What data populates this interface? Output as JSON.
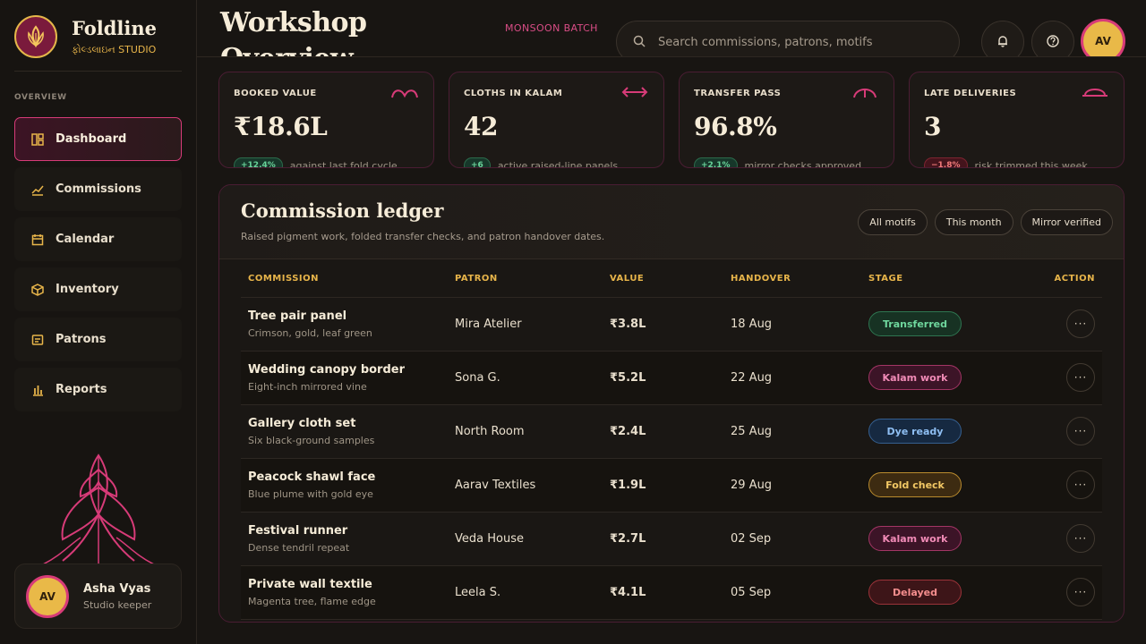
{
  "brand": {
    "name": "Foldline",
    "subtitle": "ફોલ્ડલાઇન STUDIO"
  },
  "nav": {
    "section_label": "OVERVIEW",
    "items": [
      {
        "label": "Dashboard",
        "icon": "dashboard-icon",
        "active": true
      },
      {
        "label": "Commissions",
        "icon": "trend-icon"
      },
      {
        "label": "Calendar",
        "icon": "calendar-icon"
      },
      {
        "label": "Inventory",
        "icon": "box-icon"
      },
      {
        "label": "Patrons",
        "icon": "card-icon"
      },
      {
        "label": "Reports",
        "icon": "bar-chart-icon"
      }
    ]
  },
  "profile": {
    "initials": "AV",
    "name": "Asha Vyas",
    "role": "Studio keeper"
  },
  "header": {
    "title": "Workshop Overview",
    "batch": "MONSOON BATCH",
    "search_placeholder": "Search commissions, patrons, motifs",
    "avatar_initials": "AV"
  },
  "kpis": [
    {
      "label": "BOOKED VALUE",
      "value": "₹18.6L",
      "delta": "+12.4%",
      "direction": "up",
      "note": "against last fold cycle"
    },
    {
      "label": "CLOTHS IN KALAM",
      "value": "42",
      "delta": "+6",
      "direction": "up",
      "note": "active raised-line panels"
    },
    {
      "label": "TRANSFER PASS",
      "value": "96.8%",
      "delta": "+2.1%",
      "direction": "up",
      "note": "mirror checks approved"
    },
    {
      "label": "LATE DELIVERIES",
      "value": "3",
      "delta": "−1.8%",
      "direction": "down",
      "note": "risk trimmed this week"
    }
  ],
  "ledger": {
    "title": "Commission ledger",
    "subtitle": "Raised pigment work, folded transfer checks, and patron handover dates.",
    "filters": [
      "All motifs",
      "This month",
      "Mirror verified"
    ],
    "columns": [
      "COMMISSION",
      "PATRON",
      "VALUE",
      "HANDOVER",
      "STAGE",
      "ACTION"
    ],
    "rows": [
      {
        "title": "Tree pair panel",
        "sub": "Crimson, gold, leaf green",
        "patron": "Mira Atelier",
        "value": "₹3.8L",
        "handover": "18 Aug",
        "stage": "Transferred",
        "tone": "green"
      },
      {
        "title": "Wedding canopy border",
        "sub": "Eight-inch mirrored vine",
        "patron": "Sona G.",
        "value": "₹5.2L",
        "handover": "22 Aug",
        "stage": "Kalam work",
        "tone": "pink"
      },
      {
        "title": "Gallery cloth set",
        "sub": "Six black-ground samples",
        "patron": "North Room",
        "value": "₹2.4L",
        "handover": "25 Aug",
        "stage": "Dye ready",
        "tone": "blue"
      },
      {
        "title": "Peacock shawl face",
        "sub": "Blue plume with gold eye",
        "patron": "Aarav Textiles",
        "value": "₹1.9L",
        "handover": "29 Aug",
        "stage": "Fold check",
        "tone": "gold"
      },
      {
        "title": "Festival runner",
        "sub": "Dense tendril repeat",
        "patron": "Veda House",
        "value": "₹2.7L",
        "handover": "02 Sep",
        "stage": "Kalam work",
        "tone": "pink"
      },
      {
        "title": "Private wall textile",
        "sub": "Magenta tree, flame edge",
        "patron": "Leela S.",
        "value": "₹4.1L",
        "handover": "05 Sep",
        "stage": "Delayed",
        "tone": "red"
      }
    ],
    "action_symbol": "···"
  },
  "colors": {
    "accent": "#d73b78",
    "gold": "#e8b54a",
    "background": "#181512"
  }
}
